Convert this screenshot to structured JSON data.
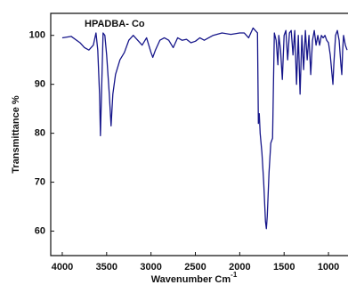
{
  "chart_data": {
    "type": "line",
    "title": "HPADBA- Co",
    "y_label": "Transmittance %",
    "x_label": "Wavenumber Cm",
    "x_label_superscript": "-1",
    "color": "#16168a",
    "xlim": [
      4130,
      780
    ],
    "ylim": [
      55,
      104.5
    ],
    "xticks": [
      4000,
      3500,
      3000,
      2500,
      2000,
      1500,
      1000
    ],
    "yticks": [
      60,
      70,
      80,
      90,
      100
    ],
    "x": [
      4000,
      3900,
      3800,
      3750,
      3700,
      3650,
      3620,
      3600,
      3580,
      3570,
      3555,
      3540,
      3520,
      3500,
      3470,
      3450,
      3430,
      3400,
      3350,
      3300,
      3250,
      3200,
      3150,
      3100,
      3050,
      3000,
      2980,
      2950,
      2900,
      2850,
      2800,
      2750,
      2700,
      2650,
      2600,
      2550,
      2500,
      2450,
      2400,
      2300,
      2200,
      2100,
      2000,
      1950,
      1900,
      1850,
      1800,
      1790,
      1780,
      1770,
      1750,
      1730,
      1710,
      1700,
      1690,
      1670,
      1650,
      1630,
      1620,
      1610,
      1590,
      1570,
      1560,
      1540,
      1520,
      1500,
      1480,
      1460,
      1440,
      1420,
      1400,
      1380,
      1360,
      1340,
      1320,
      1300,
      1280,
      1260,
      1240,
      1220,
      1200,
      1180,
      1160,
      1140,
      1120,
      1100,
      1080,
      1060,
      1040,
      1020,
      1000,
      980,
      960,
      950,
      940,
      920,
      900,
      880,
      860,
      850,
      840,
      830,
      810,
      790
    ],
    "values": [
      99.5,
      99.8,
      98.5,
      97.5,
      97,
      98,
      100.5,
      97,
      88,
      79.5,
      90,
      100.5,
      100,
      96,
      88,
      81.5,
      88,
      92,
      95,
      96.5,
      99,
      100,
      99,
      98,
      99.5,
      96.5,
      95.5,
      97,
      99,
      99.5,
      99,
      97.5,
      99.5,
      99,
      99.2,
      98.5,
      98.8,
      99.5,
      99,
      100,
      100.5,
      100.2,
      100.5,
      100.5,
      99.5,
      101.5,
      100.5,
      82,
      84,
      80,
      76,
      70,
      62,
      60.5,
      63,
      72,
      78,
      79,
      90,
      100.5,
      99,
      94,
      100,
      97,
      91,
      100,
      101,
      95,
      100.5,
      101,
      96,
      101,
      90,
      100,
      88,
      100,
      93,
      101,
      95,
      100,
      92,
      99,
      101,
      98,
      100,
      98,
      100,
      99.5,
      100,
      99,
      98.5,
      96,
      92,
      90,
      94,
      100,
      101,
      99,
      94,
      92,
      97,
      100,
      98,
      97
    ]
  }
}
